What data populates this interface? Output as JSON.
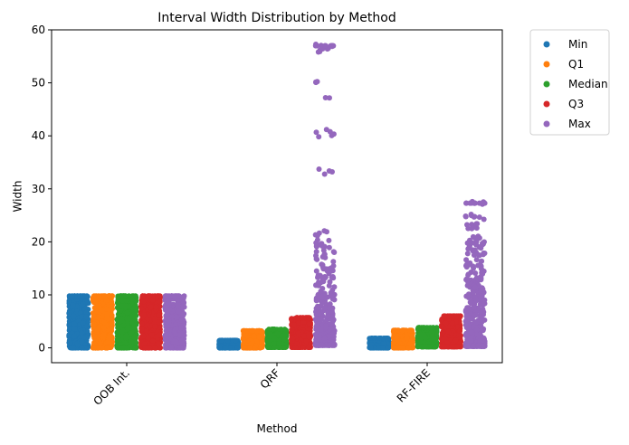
{
  "chart_data": {
    "type": "scatter",
    "subtype": "strip",
    "title": "Interval Width Distribution by Method",
    "xlabel": "Method",
    "ylabel": "Width",
    "categories": [
      "OOB Int.",
      "QRF",
      "RF-FIRE"
    ],
    "ylim": [
      -2.8,
      60
    ],
    "yticks": [
      0,
      10,
      20,
      30,
      40,
      50,
      60
    ],
    "tick_label_rotation": 45,
    "grid": false,
    "legend": {
      "placement": "outside-right-top"
    },
    "series": [
      {
        "name": "Min",
        "color": "#1f77b4",
        "summary": [
          {
            "category": "OOB Int.",
            "min": 0.0,
            "max": 9.8
          },
          {
            "category": "QRF",
            "min": 0.0,
            "max": 1.4
          },
          {
            "category": "RF-FIRE",
            "min": 0.0,
            "max": 1.8
          }
        ]
      },
      {
        "name": "Q1",
        "color": "#ff7f0e",
        "summary": [
          {
            "category": "OOB Int.",
            "min": 0.0,
            "max": 9.8
          },
          {
            "category": "QRF",
            "min": 0.0,
            "max": 3.2
          },
          {
            "category": "RF-FIRE",
            "min": 0.0,
            "max": 3.3
          }
        ]
      },
      {
        "name": "Median",
        "color": "#2ca02c",
        "summary": [
          {
            "category": "OOB Int.",
            "min": 0.0,
            "max": 9.8
          },
          {
            "category": "QRF",
            "min": 0.1,
            "max": 3.5
          },
          {
            "category": "RF-FIRE",
            "min": 0.2,
            "max": 3.8
          }
        ]
      },
      {
        "name": "Q3",
        "color": "#d62728",
        "summary": [
          {
            "category": "OOB Int.",
            "min": 0.0,
            "max": 9.8
          },
          {
            "category": "QRF",
            "min": 0.1,
            "max": 5.7
          },
          {
            "category": "RF-FIRE",
            "min": 0.2,
            "max": 6.0
          }
        ]
      },
      {
        "name": "Max",
        "color": "#9467bd",
        "summary": [
          {
            "category": "OOB Int.",
            "min": 0.0,
            "max": 9.8
          },
          {
            "category": "QRF",
            "min": 0.5,
            "max": 57.0,
            "clusters": [
              57.0,
              56.5,
              56.0,
              50.0,
              47.0,
              41.0,
              40.5,
              40.0,
              33.5,
              33.0,
              22.0,
              21.5,
              21.0
            ]
          },
          {
            "category": "RF-FIRE",
            "min": 0.3,
            "max": 27.3,
            "clusters": [
              27.3,
              25.0,
              24.5,
              23.5,
              22.5,
              21.0,
              20.0,
              19.0
            ]
          }
        ]
      }
    ]
  }
}
